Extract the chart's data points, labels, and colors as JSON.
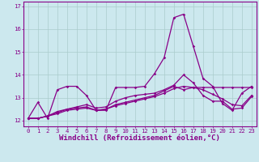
{
  "xlabel": "Windchill (Refroidissement éolien,°C)",
  "background_color": "#cce8ee",
  "grid_color": "#aacccc",
  "line_color": "#880088",
  "x": [
    0,
    1,
    2,
    3,
    4,
    5,
    6,
    7,
    8,
    9,
    10,
    11,
    12,
    13,
    14,
    15,
    16,
    17,
    18,
    19,
    20,
    21,
    22,
    23
  ],
  "line1": [
    12.1,
    12.8,
    12.1,
    13.35,
    13.5,
    13.5,
    13.1,
    12.45,
    12.45,
    13.45,
    13.45,
    13.45,
    13.5,
    14.05,
    14.75,
    16.5,
    16.65,
    15.25,
    13.85,
    13.5,
    12.75,
    12.45,
    13.2,
    13.5
  ],
  "line2": [
    12.1,
    12.1,
    12.2,
    12.4,
    12.5,
    12.55,
    12.6,
    12.45,
    12.5,
    12.7,
    12.8,
    12.9,
    13.0,
    13.1,
    13.3,
    13.5,
    13.35,
    13.45,
    13.45,
    13.45,
    13.45,
    13.45,
    13.45,
    13.45
  ],
  "line3": [
    12.1,
    12.1,
    12.2,
    12.35,
    12.5,
    12.6,
    12.7,
    12.55,
    12.6,
    12.85,
    13.0,
    13.1,
    13.15,
    13.2,
    13.35,
    13.55,
    14.0,
    13.65,
    13.1,
    12.85,
    12.85,
    12.5,
    12.55,
    13.05
  ],
  "line4": [
    12.1,
    12.1,
    12.2,
    12.3,
    12.45,
    12.5,
    12.55,
    12.45,
    12.5,
    12.65,
    12.75,
    12.85,
    12.95,
    13.05,
    13.2,
    13.4,
    13.5,
    13.45,
    13.35,
    13.15,
    12.95,
    12.7,
    12.65,
    13.1
  ],
  "ylim": [
    11.75,
    17.2
  ],
  "yticks": [
    12,
    13,
    14,
    15,
    16,
    17
  ],
  "xticks": [
    0,
    1,
    2,
    3,
    4,
    5,
    6,
    7,
    8,
    9,
    10,
    11,
    12,
    13,
    14,
    15,
    16,
    17,
    18,
    19,
    20,
    21,
    22,
    23
  ],
  "tick_fontsize": 5.2,
  "xlabel_fontsize": 6.5
}
